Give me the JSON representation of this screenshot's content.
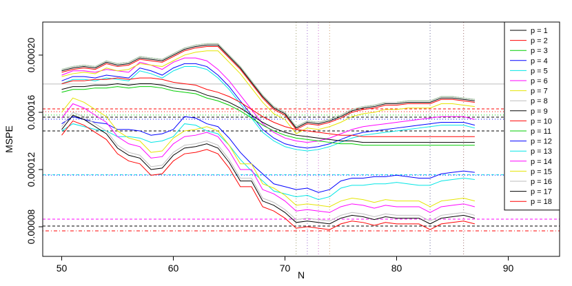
{
  "chart_data": {
    "type": "line",
    "x_label": "N",
    "y_label": "MSPE",
    "x": [
      50,
      51,
      52,
      53,
      54,
      55,
      56,
      57,
      58,
      59,
      60,
      61,
      62,
      63,
      64,
      65,
      66,
      67,
      68,
      69,
      70,
      71,
      72,
      73,
      74,
      75,
      76,
      77,
      78,
      79,
      80,
      81,
      82,
      83,
      84,
      85,
      86,
      87
    ],
    "xlim": [
      48.3,
      94.6
    ],
    "xticks": [
      50,
      60,
      70,
      80,
      90
    ],
    "ylim": [
      5.93e-05,
      0.0002231
    ],
    "yticks": [
      8e-05,
      0.00012,
      0.00016,
      {
        "value": 0.0002,
        "label": "0.00020"
      }
    ],
    "legend": "topright",
    "series": [
      {
        "name": "p = 1",
        "color": "#000000",
        "values": [
          0.000189,
          0.000191,
          0.000192,
          0.000191,
          0.000195,
          0.000193,
          0.000194,
          0.000198,
          0.000197,
          0.000196,
          0.0002,
          0.000204,
          0.000206,
          0.000207,
          0.000207,
          0.000199,
          0.000191,
          0.000181,
          0.000171,
          0.000163,
          0.000159,
          0.000149,
          0.000153,
          0.000152,
          0.000154,
          0.000157,
          0.000161,
          0.000163,
          0.000164,
          0.000166,
          0.000166,
          0.000167,
          0.000167,
          0.000167,
          0.00017,
          0.00017,
          0.000169,
          0.000168
        ]
      },
      {
        "name": "p = 2",
        "color": "#ff0000",
        "values": [
          0.000188,
          0.00019,
          0.000191,
          0.00019,
          0.000194,
          0.000192,
          0.000193,
          0.000197,
          0.000196,
          0.000195,
          0.000199,
          0.000203,
          0.000205,
          0.000206,
          0.000206,
          0.000198,
          0.00019,
          0.00018,
          0.00017,
          0.000162,
          0.000158,
          0.000148,
          0.000152,
          0.000151,
          0.000153,
          0.000156,
          0.00016,
          0.000162,
          0.000163,
          0.000165,
          0.000165,
          0.000166,
          0.000166,
          0.000166,
          0.000169,
          0.000169,
          0.000168,
          0.000167
        ]
      },
      {
        "name": "p = 3",
        "color": "#00cd00",
        "values": [
          0.00019,
          0.000192,
          0.000193,
          0.000192,
          0.000196,
          0.000194,
          0.000195,
          0.000199,
          0.000198,
          0.000197,
          0.000201,
          0.000205,
          0.000207,
          0.000208,
          0.000208,
          0.0002,
          0.000192,
          0.000182,
          0.000172,
          0.000164,
          0.00016,
          0.00015,
          0.000154,
          0.000153,
          0.000155,
          0.000158,
          0.000162,
          0.000164,
          0.000165,
          0.000167,
          0.000167,
          0.000168,
          0.000168,
          0.000168,
          0.000171,
          0.000171,
          0.00017,
          0.000169
        ]
      },
      {
        "name": "p = 4",
        "color": "#0000ff",
        "values": [
          0.000182,
          0.000185,
          0.000185,
          0.000184,
          0.000186,
          0.000185,
          0.000184,
          0.000191,
          0.000189,
          0.000186,
          0.000191,
          0.000194,
          0.000194,
          0.000192,
          0.000186,
          0.000178,
          0.000168,
          0.000158,
          0.000148,
          0.000142,
          0.000138,
          0.000136,
          0.000135,
          0.000136,
          0.000138,
          0.000141,
          0.000144,
          0.000146,
          0.000147,
          0.000148,
          0.000149,
          0.00015,
          0.000151,
          0.000152,
          0.000153,
          0.000153,
          0.000153,
          0.000151
        ]
      },
      {
        "name": "p = 5",
        "color": "#00e5e5",
        "values": [
          0.00018,
          0.000183,
          0.000183,
          0.000182,
          0.000184,
          0.000183,
          0.000182,
          0.000189,
          0.000187,
          0.000184,
          0.000189,
          0.000192,
          0.000192,
          0.00019,
          0.000184,
          0.000176,
          0.000166,
          0.000156,
          0.000146,
          0.00014,
          0.000136,
          0.000134,
          0.000133,
          0.000134,
          0.000136,
          0.000139,
          0.000142,
          0.000144,
          0.000145,
          0.000146,
          0.000147,
          0.000148,
          0.000149,
          0.00015,
          0.000151,
          0.000151,
          0.000151,
          0.000149
        ]
      },
      {
        "name": "p = 6",
        "color": "#ff00ff",
        "values": [
          0.000186,
          0.000189,
          0.000189,
          0.000188,
          0.00019,
          0.000189,
          0.000188,
          0.000195,
          0.000193,
          0.00019,
          0.000195,
          0.000198,
          0.000198,
          0.000196,
          0.00019,
          0.000182,
          0.000172,
          0.000162,
          0.000152,
          0.000146,
          0.000142,
          0.00014,
          0.000139,
          0.00014,
          0.000142,
          0.000145,
          0.000148,
          0.00015,
          0.000151,
          0.000152,
          0.000153,
          0.000154,
          0.000155,
          0.000156,
          0.000157,
          0.000157,
          0.000157,
          0.000155
        ]
      },
      {
        "name": "p = 7",
        "color": "#e5e500",
        "values": [
          0.000185,
          0.000187,
          0.000188,
          0.000187,
          0.000191,
          0.000189,
          0.00019,
          0.000194,
          0.000193,
          0.000192,
          0.000196,
          0.0002,
          0.000202,
          0.000203,
          0.000203,
          0.000195,
          0.000187,
          0.000177,
          0.000167,
          0.000159,
          0.000155,
          0.000145,
          0.000149,
          0.000148,
          0.00015,
          0.000153,
          0.000157,
          0.000159,
          0.00016,
          0.000162,
          0.000162,
          0.000163,
          0.000163,
          0.000163,
          0.000166,
          0.000166,
          0.000165,
          0.000164
        ]
      },
      {
        "name": "p = 8",
        "color": "#bebebe",
        "values": [
          0.00019,
          0.000192,
          0.000193,
          0.000192,
          0.000196,
          0.000194,
          0.000195,
          0.000199,
          0.000198,
          0.000197,
          0.000201,
          0.000205,
          0.000207,
          0.000208,
          0.000208,
          0.0002,
          0.000192,
          0.000182,
          0.000172,
          0.000164,
          0.00016,
          0.00015,
          0.000154,
          0.000153,
          0.000155,
          0.000158,
          0.000162,
          0.000164,
          0.000165,
          0.000167,
          0.000167,
          0.000168,
          0.000168,
          0.000168,
          0.000171,
          0.000171,
          0.00017,
          0.000169
        ]
      },
      {
        "name": "p = 9",
        "color": "#000000",
        "values": [
          0.000176,
          0.000178,
          0.000178,
          0.000179,
          0.000179,
          0.00018,
          0.000179,
          0.00018,
          0.00018,
          0.000179,
          0.000177,
          0.000176,
          0.000175,
          0.000172,
          0.00017,
          0.000167,
          0.000163,
          0.000158,
          0.000153,
          0.000149,
          0.000146,
          0.000144,
          0.000143,
          0.000142,
          0.000141,
          0.00014,
          0.00014,
          0.000139,
          0.000139,
          0.000139,
          0.000139,
          0.000139,
          0.000139,
          0.000139,
          0.000139,
          0.000139,
          0.000139,
          0.000139
        ]
      },
      {
        "name": "p = 10",
        "color": "#ff0000",
        "values": [
          0.00018,
          0.000182,
          0.000182,
          0.000183,
          0.000183,
          0.000184,
          0.000183,
          0.000184,
          0.000184,
          0.000183,
          0.000181,
          0.00018,
          0.000179,
          0.000176,
          0.000174,
          0.000171,
          0.000167,
          0.000162,
          0.000157,
          0.000153,
          0.00015,
          0.000148,
          0.000147,
          0.000146,
          0.000145,
          0.000144,
          0.000144,
          0.000143,
          0.000143,
          0.000143,
          0.000143,
          0.000143,
          0.000143,
          0.000143,
          0.000143,
          0.000143,
          0.000143,
          0.000143
        ]
      },
      {
        "name": "p = 11",
        "color": "#00cd00",
        "values": [
          0.000174,
          0.000176,
          0.000176,
          0.000177,
          0.000177,
          0.000178,
          0.000177,
          0.000178,
          0.000178,
          0.000177,
          0.000175,
          0.000174,
          0.000173,
          0.00017,
          0.000168,
          0.000165,
          0.000161,
          0.000156,
          0.000151,
          0.000147,
          0.000144,
          0.000142,
          0.000141,
          0.00014,
          0.000139,
          0.000138,
          0.000138,
          0.000137,
          0.000137,
          0.000137,
          0.000137,
          0.000137,
          0.000137,
          0.000137,
          0.000137,
          0.000137,
          0.000137,
          0.000137
        ]
      },
      {
        "name": "p = 12",
        "color": "#0000ff",
        "values": [
          0.000152,
          0.000157,
          0.000155,
          0.000153,
          0.000152,
          0.000148,
          0.000148,
          0.000147,
          0.000144,
          0.000145,
          0.000148,
          0.000157,
          0.000156,
          0.000152,
          0.00015,
          0.000142,
          0.000132,
          0.000124,
          0.000117,
          0.00011,
          0.000108,
          0.000106,
          0.000107,
          0.000104,
          0.000106,
          0.000112,
          0.000114,
          0.000114,
          0.000115,
          0.000115,
          0.000116,
          0.000115,
          0.000114,
          0.000114,
          0.000117,
          0.000118,
          0.000119,
          0.000118
        ]
      },
      {
        "name": "p = 13",
        "color": "#00e5e5",
        "values": [
          0.000147,
          0.000152,
          0.00015,
          0.000148,
          0.000147,
          0.000143,
          0.000143,
          0.000142,
          0.000139,
          0.00014,
          0.000143,
          0.000152,
          0.000151,
          0.000147,
          0.000145,
          0.000137,
          0.000127,
          0.000119,
          0.000112,
          0.000105,
          0.000103,
          0.000101,
          0.000102,
          9.9e-05,
          0.000101,
          0.000107,
          0.000109,
          0.000109,
          0.00011,
          0.00011,
          0.000111,
          0.00011,
          0.000109,
          0.000109,
          0.000112,
          0.000113,
          0.000114,
          0.000113
        ]
      },
      {
        "name": "p = 14",
        "color": "#ff00ff",
        "values": [
          0.000156,
          0.000166,
          0.000163,
          0.000158,
          0.000153,
          0.000143,
          0.000138,
          0.000136,
          0.000128,
          0.000129,
          0.000138,
          0.000143,
          0.000144,
          0.000146,
          0.000143,
          0.000133,
          0.00012,
          0.00012,
          0.000106,
          0.000103,
          9.8e-05,
          9.1e-05,
          9.2e-05,
          9.1e-05,
          9e-05,
          9.4e-05,
          9.6e-05,
          9.5e-05,
          9.3e-05,
          9.5e-05,
          9.4e-05,
          9.4e-05,
          9.4e-05,
          9e-05,
          9.4e-05,
          9.5e-05,
          9.6e-05,
          9.4e-05
        ]
      },
      {
        "name": "p = 15",
        "color": "#e5e500",
        "values": [
          0.00016,
          0.00017,
          0.000167,
          0.000162,
          0.000157,
          0.000147,
          0.000142,
          0.00014,
          0.000132,
          0.000133,
          0.000142,
          0.000147,
          0.000148,
          0.00015,
          0.000147,
          0.000137,
          0.000124,
          0.000124,
          0.00011,
          0.000107,
          0.000102,
          9.5e-05,
          9.6e-05,
          9.5e-05,
          9.4e-05,
          9.8e-05,
          0.0001,
          9.9e-05,
          9.7e-05,
          9.9e-05,
          9.8e-05,
          9.8e-05,
          9.8e-05,
          9.4e-05,
          9.8e-05,
          9.9e-05,
          0.0001,
          9.8e-05
        ]
      },
      {
        "name": "p = 16",
        "color": "#bebebe",
        "values": [
          0.00015,
          0.00016,
          0.000157,
          0.000152,
          0.000147,
          0.000137,
          0.000132,
          0.00013,
          0.000122,
          0.000123,
          0.000132,
          0.000137,
          0.000138,
          0.00014,
          0.000137,
          0.000127,
          0.000114,
          0.000114,
          0.0001,
          9.7e-05,
          9.2e-05,
          8.5e-05,
          8.6e-05,
          8.5e-05,
          8.4e-05,
          8.8e-05,
          9e-05,
          8.9e-05,
          8.7e-05,
          8.9e-05,
          8.8e-05,
          8.8e-05,
          8.8e-05,
          8.4e-05,
          8.8e-05,
          8.9e-05,
          9e-05,
          8.8e-05
        ]
      },
      {
        "name": "p = 17",
        "color": "#000000",
        "values": [
          0.000148,
          0.000158,
          0.000155,
          0.00015,
          0.000145,
          0.000135,
          0.00013,
          0.000128,
          0.00012,
          0.000121,
          0.00013,
          0.000135,
          0.000136,
          0.000138,
          0.000135,
          0.000125,
          0.000112,
          0.000112,
          9.8e-05,
          9.5e-05,
          9e-05,
          8.3e-05,
          8.4e-05,
          8.3e-05,
          8.2e-05,
          8.6e-05,
          8.8e-05,
          8.7e-05,
          8.5e-05,
          8.7e-05,
          8.6e-05,
          8.6e-05,
          8.6e-05,
          8.2e-05,
          8.6e-05,
          8.7e-05,
          8.8e-05,
          8.6e-05
        ]
      },
      {
        "name": "p = 18",
        "color": "#ff0000",
        "values": [
          0.000144,
          0.000154,
          0.000151,
          0.000146,
          0.000141,
          0.000131,
          0.000126,
          0.000124,
          0.000116,
          0.000117,
          0.000126,
          0.000131,
          0.000132,
          0.000134,
          0.000131,
          0.000121,
          0.000108,
          0.000108,
          9.4e-05,
          9.1e-05,
          8.6e-05,
          7.9e-05,
          8e-05,
          7.9e-05,
          7.8e-05,
          8.2e-05,
          8.4e-05,
          8.3e-05,
          8.1e-05,
          8.3e-05,
          8.2e-05,
          8.2e-05,
          8.2e-05,
          7.8e-05,
          8.2e-05,
          8.3e-05,
          8.4e-05,
          8.2e-05
        ]
      }
    ],
    "hlines": [
      {
        "value": 0.0001798,
        "color": "#bebebe",
        "dash": "solid"
      },
      {
        "value": 0.0001624,
        "color": "#ff0000",
        "dash": "dashed"
      },
      {
        "value": 0.0001605,
        "color": "#ff0000",
        "dash": "dotted"
      },
      {
        "value": 0.0001581,
        "color": "#00cd00",
        "dash": "dotted"
      },
      {
        "value": 0.0001566,
        "color": "#000000",
        "dash": "dashed"
      },
      {
        "value": 0.0001552,
        "color": "#0000ff",
        "dash": "dotted"
      },
      {
        "value": 0.000147,
        "color": "#000000",
        "dash": "dashed"
      },
      {
        "value": 0.0001163,
        "color": "#00e5e5",
        "dash": "dashed"
      },
      {
        "value": 0.0001161,
        "color": "#0000ff",
        "dash": "dotted"
      },
      {
        "value": 8.53e-05,
        "color": "#ff00ff",
        "dash": "dashed"
      },
      {
        "value": 8.05e-05,
        "color": "#000000",
        "dash": "dashed"
      },
      {
        "value": 7.71e-05,
        "color": "#ff0000",
        "dash": "dotdash"
      }
    ],
    "vlines": [
      {
        "value": 71,
        "color": "#999966"
      },
      {
        "value": 72,
        "color": "#9966cc"
      },
      {
        "value": 73,
        "color": "#cc66cc"
      },
      {
        "value": 74,
        "color": "#cc9966"
      },
      {
        "value": 83,
        "color": "#666699"
      },
      {
        "value": 86,
        "color": "#996666"
      }
    ]
  }
}
